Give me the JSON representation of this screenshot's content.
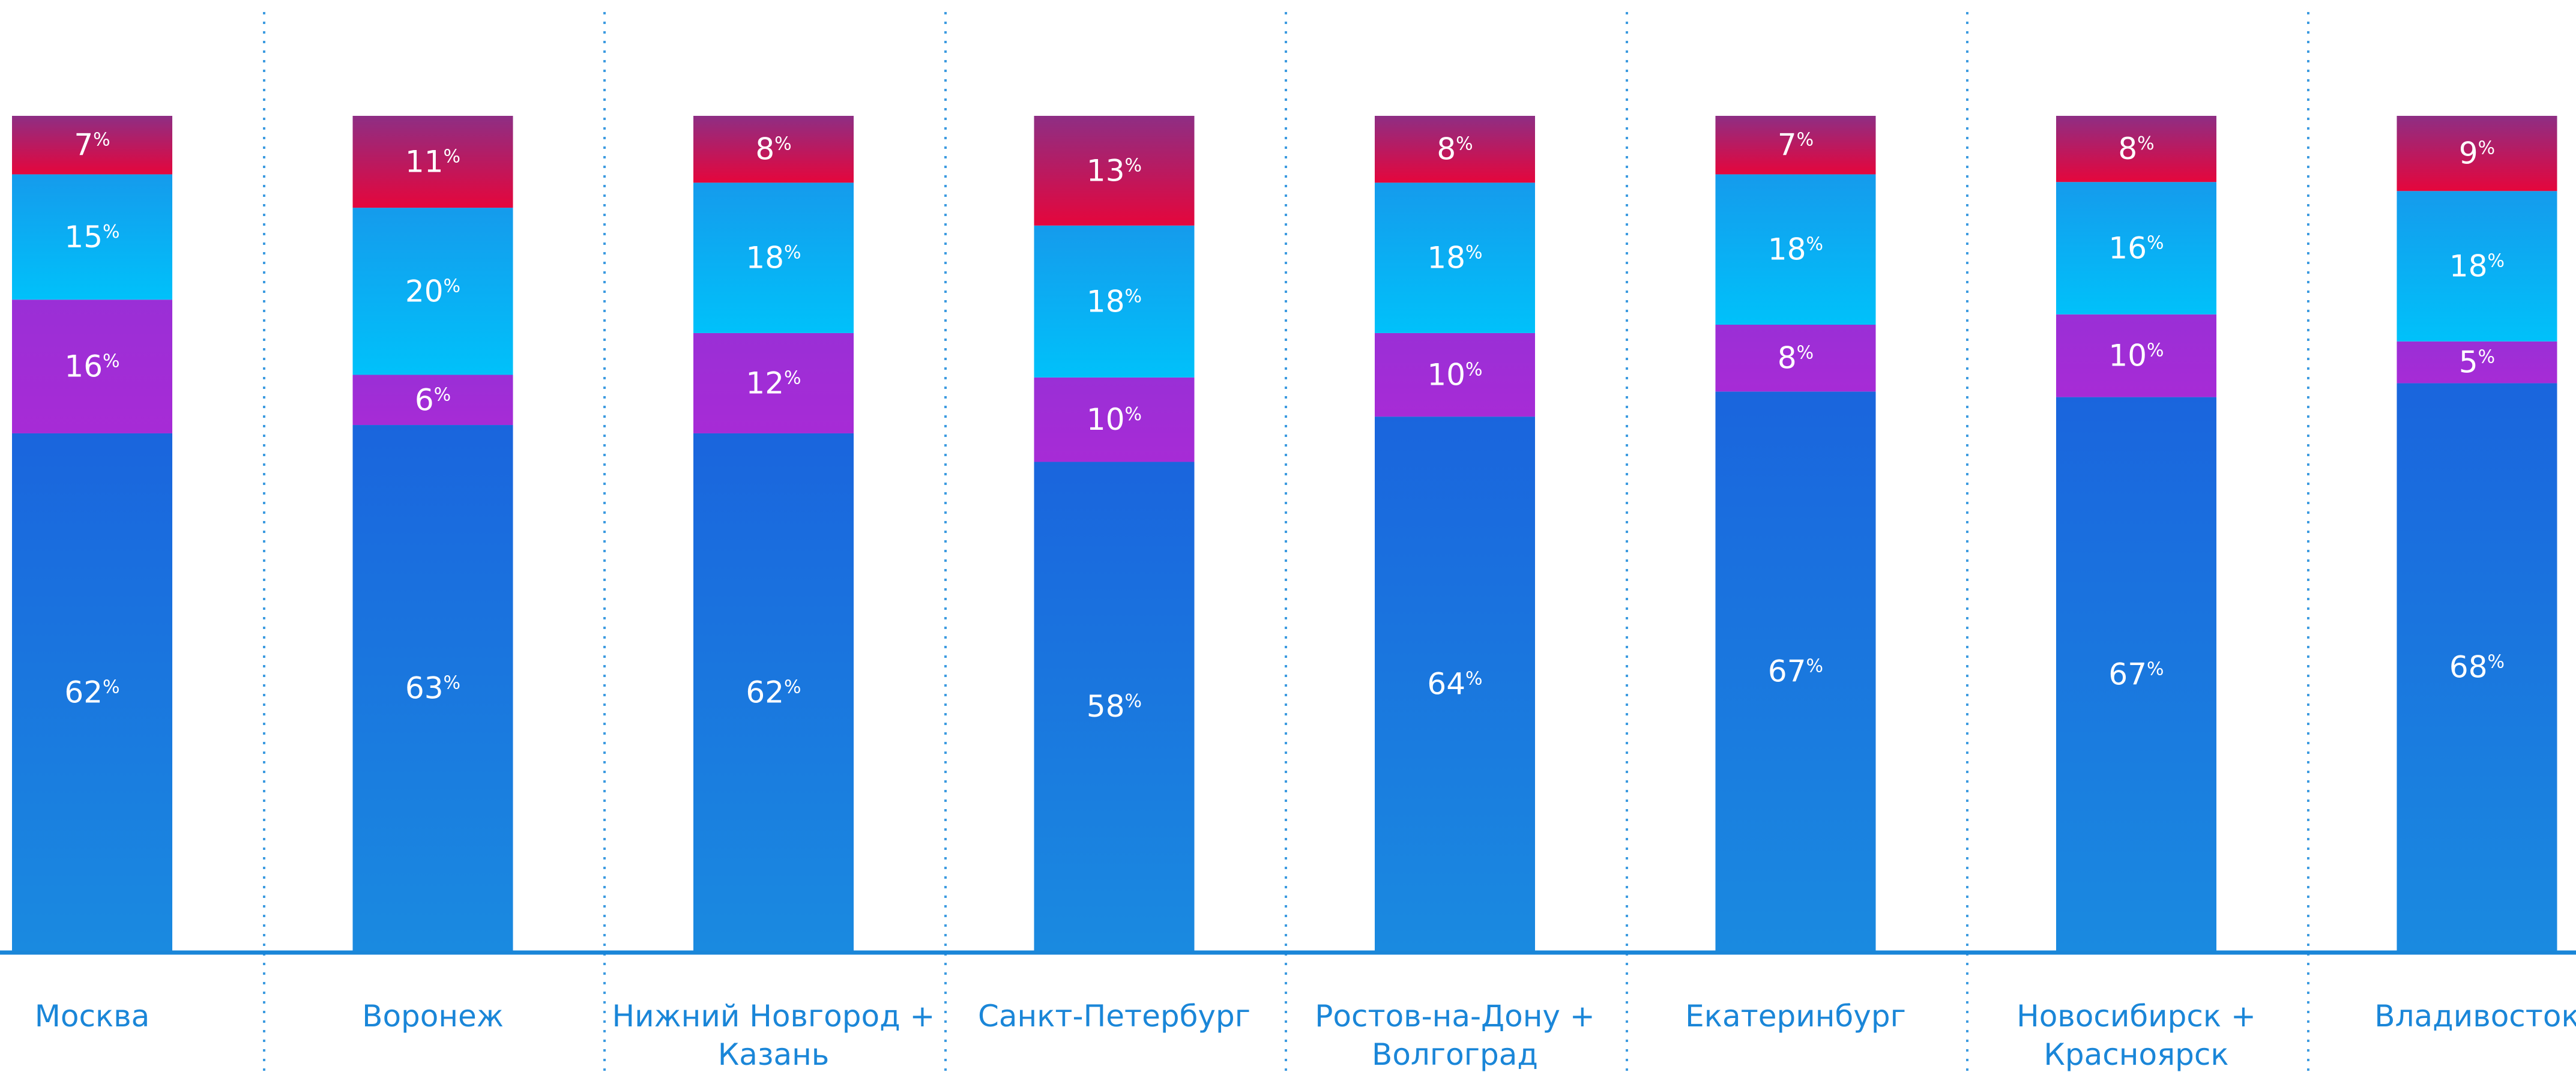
{
  "chart_data": {
    "type": "bar",
    "stacked": true,
    "percent_suffix": "%",
    "categories": [
      [
        "Москва"
      ],
      [
        "Воронеж"
      ],
      [
        "Нижний Новгород +",
        "Казань"
      ],
      [
        "Санкт-Петербург"
      ],
      [
        "Ростов-на-Дону +",
        "Волгоград"
      ],
      [
        "Екатеринбург"
      ],
      [
        "Новосибирск +",
        "Красноярск"
      ],
      [
        "Владивосток"
      ]
    ],
    "series": [
      {
        "key": "blue",
        "values": [
          62,
          63,
          62,
          58,
          64,
          67,
          67,
          68
        ],
        "color_top": "#1a65dd",
        "color_bottom": "#1a8ae0"
      },
      {
        "key": "purple",
        "values": [
          16,
          6,
          12,
          10,
          10,
          8,
          10,
          5
        ],
        "color_top": "#9a2fd6",
        "color_bottom": "#a72bd6"
      },
      {
        "key": "cyan",
        "values": [
          15,
          20,
          18,
          18,
          18,
          18,
          16,
          18
        ],
        "color_top": "#159bec",
        "color_bottom": "#00c1fa"
      },
      {
        "key": "red",
        "values": [
          7,
          11,
          8,
          13,
          8,
          7,
          8,
          9
        ],
        "color_top": "#8e2e84",
        "color_bottom": "#e5063c"
      }
    ],
    "ylim": [
      0,
      100
    ],
    "legend": "none",
    "grid": "vertical dotted separators",
    "colors": {
      "baseline": "#1a86d8",
      "separator": "#3d9be0",
      "label_text": "#1a86d8"
    }
  }
}
